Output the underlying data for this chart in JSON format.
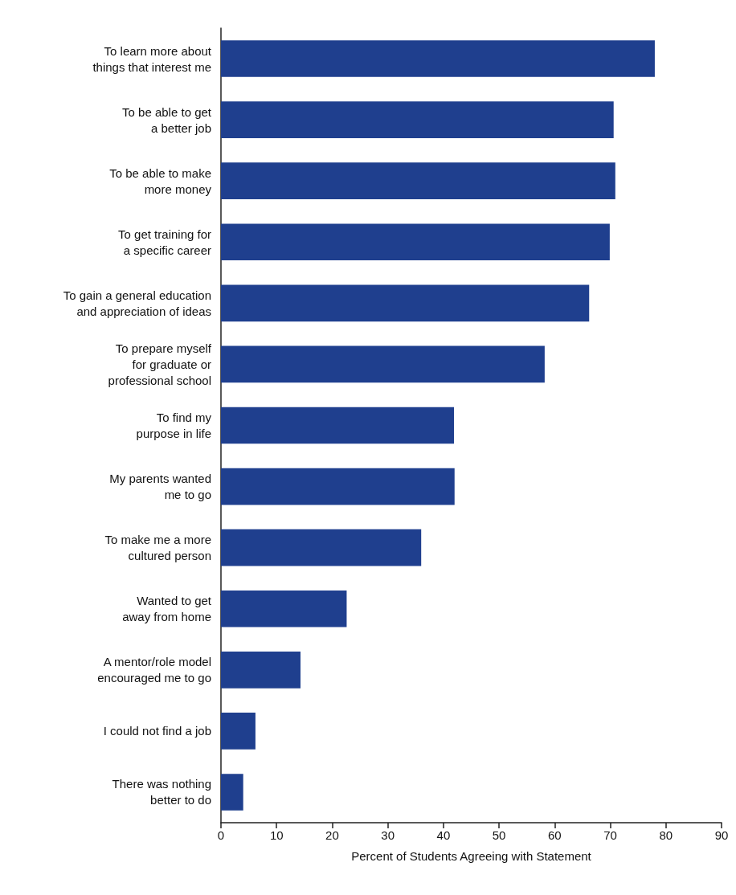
{
  "chart_data": {
    "type": "bar",
    "orientation": "horizontal",
    "xlabel": "Percent of Students Agreeing with Statement",
    "categories": [
      "To learn more about\nthings that interest me",
      "To be able to get\na better job",
      "To be able to make\nmore money",
      "To get training for\na specific career",
      "To gain a general education\nand appreciation of ideas",
      "To prepare myself\nfor graduate or\nprofessional school",
      "To find my\npurpose in life",
      "My parents wanted\nme to go",
      "To make me a more\ncultured person",
      "Wanted to get\naway from home",
      "A mentor/role model\nencouraged me to go",
      "I could not find a job",
      "There was nothing\nbetter to do"
    ],
    "values": [
      78.0,
      70.6,
      70.9,
      69.9,
      66.2,
      58.2,
      41.9,
      42.0,
      36.0,
      22.6,
      14.3,
      6.2,
      4.0
    ],
    "color": "#1f3f8e",
    "xlim": [
      0,
      90
    ],
    "xticks": [
      0,
      10,
      20,
      30,
      40,
      50,
      60,
      70,
      80,
      90
    ],
    "grid": false
  }
}
